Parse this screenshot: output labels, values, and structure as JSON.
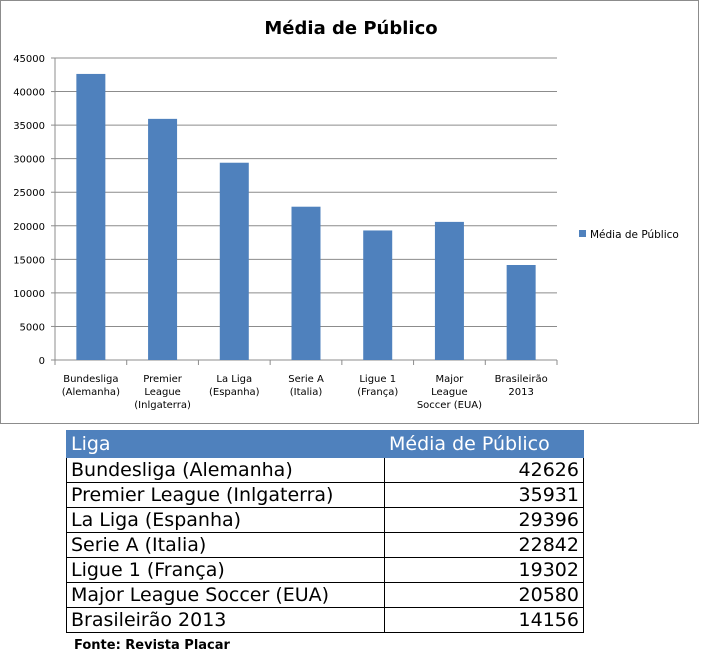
{
  "chart_data": {
    "type": "bar",
    "title": "Média de Público",
    "categories": [
      [
        "Bundesliga",
        "(Alemanha)"
      ],
      [
        "Premier",
        "League",
        "(Inlgaterra)"
      ],
      [
        "La Liga",
        "(Espanha)"
      ],
      [
        "Serie A",
        "(Italia)"
      ],
      [
        "Ligue 1",
        "(França)"
      ],
      [
        "Major",
        "League",
        "Soccer (EUA)"
      ],
      [
        "Brasileirão",
        "2013"
      ]
    ],
    "series": [
      {
        "name": "Média de Público",
        "values": [
          42626,
          35931,
          29396,
          22842,
          19302,
          20580,
          14156
        ],
        "color": "#4f81bd"
      }
    ],
    "ylim": [
      0,
      45000
    ],
    "yticks": [
      "0",
      "5000",
      "10000",
      "15000",
      "20000",
      "25000",
      "30000",
      "35000",
      "40000",
      "45000"
    ],
    "grid": true,
    "legend_position": "right"
  },
  "table": {
    "headers": {
      "liga": "Liga",
      "media": "Média de Público"
    },
    "rows": [
      {
        "liga": "Bundesliga (Alemanha)",
        "media": "42626"
      },
      {
        "liga": "Premier League (Inlgaterra)",
        "media": "35931"
      },
      {
        "liga": "La Liga (Espanha)",
        "media": "29396"
      },
      {
        "liga": "Serie A (Italia)",
        "media": "22842"
      },
      {
        "liga": "Ligue 1 (França)",
        "media": "19302"
      },
      {
        "liga": "Major League Soccer (EUA)",
        "media": "20580"
      },
      {
        "liga": "Brasileirão 2013",
        "media": "14156"
      }
    ]
  },
  "source": "Fonte: Revista Placar"
}
